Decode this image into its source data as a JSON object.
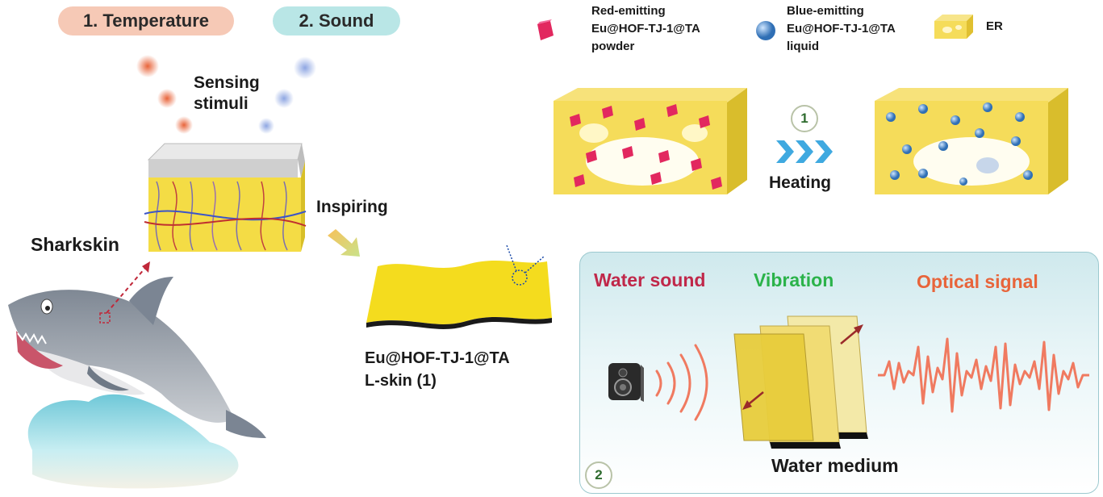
{
  "stimuli": {
    "temperature_label": "1. Temperature",
    "sound_label": "2. Sound",
    "sensing_line1": "Sensing",
    "sensing_line2": "stimuli"
  },
  "left": {
    "sharkskin_label": "Sharkskin",
    "inspiring_label": "Inspiring",
    "skin_label_line1": "Eu@HOF-TJ-1@TA",
    "skin_label_line2": "L-skin (1)"
  },
  "legend": {
    "red_line1": "Red-emitting",
    "red_line2": "Eu@HOF-TJ-1@TA",
    "red_line3": "powder",
    "blue_line1": "Blue-emitting",
    "blue_line2": "Eu@HOF-TJ-1@TA",
    "blue_line3": "liquid",
    "er_label": "ER"
  },
  "process1": {
    "step_number": "1",
    "heating_label": "Heating"
  },
  "process2": {
    "step_number": "2",
    "water_sound_label": "Water sound",
    "vibration_label": "Vibration",
    "optical_signal_label": "Optical signal",
    "water_medium_label": "Water medium"
  },
  "colors": {
    "temperature_pill": "#f6c9b6",
    "sound_pill": "#b9e6e6",
    "red_dot": "#e8643a",
    "blue_dot": "#8ea6e2",
    "er_yellow": "#f5dc5a",
    "red_crystal": "#e2285f",
    "blue_sphere": "#3f86c9",
    "water_sound_text": "#c0284a",
    "vibration_text": "#2bb34a",
    "optical_text": "#e8643a",
    "signal_line": "#f07a60",
    "chevron": "#3fa9e0"
  }
}
